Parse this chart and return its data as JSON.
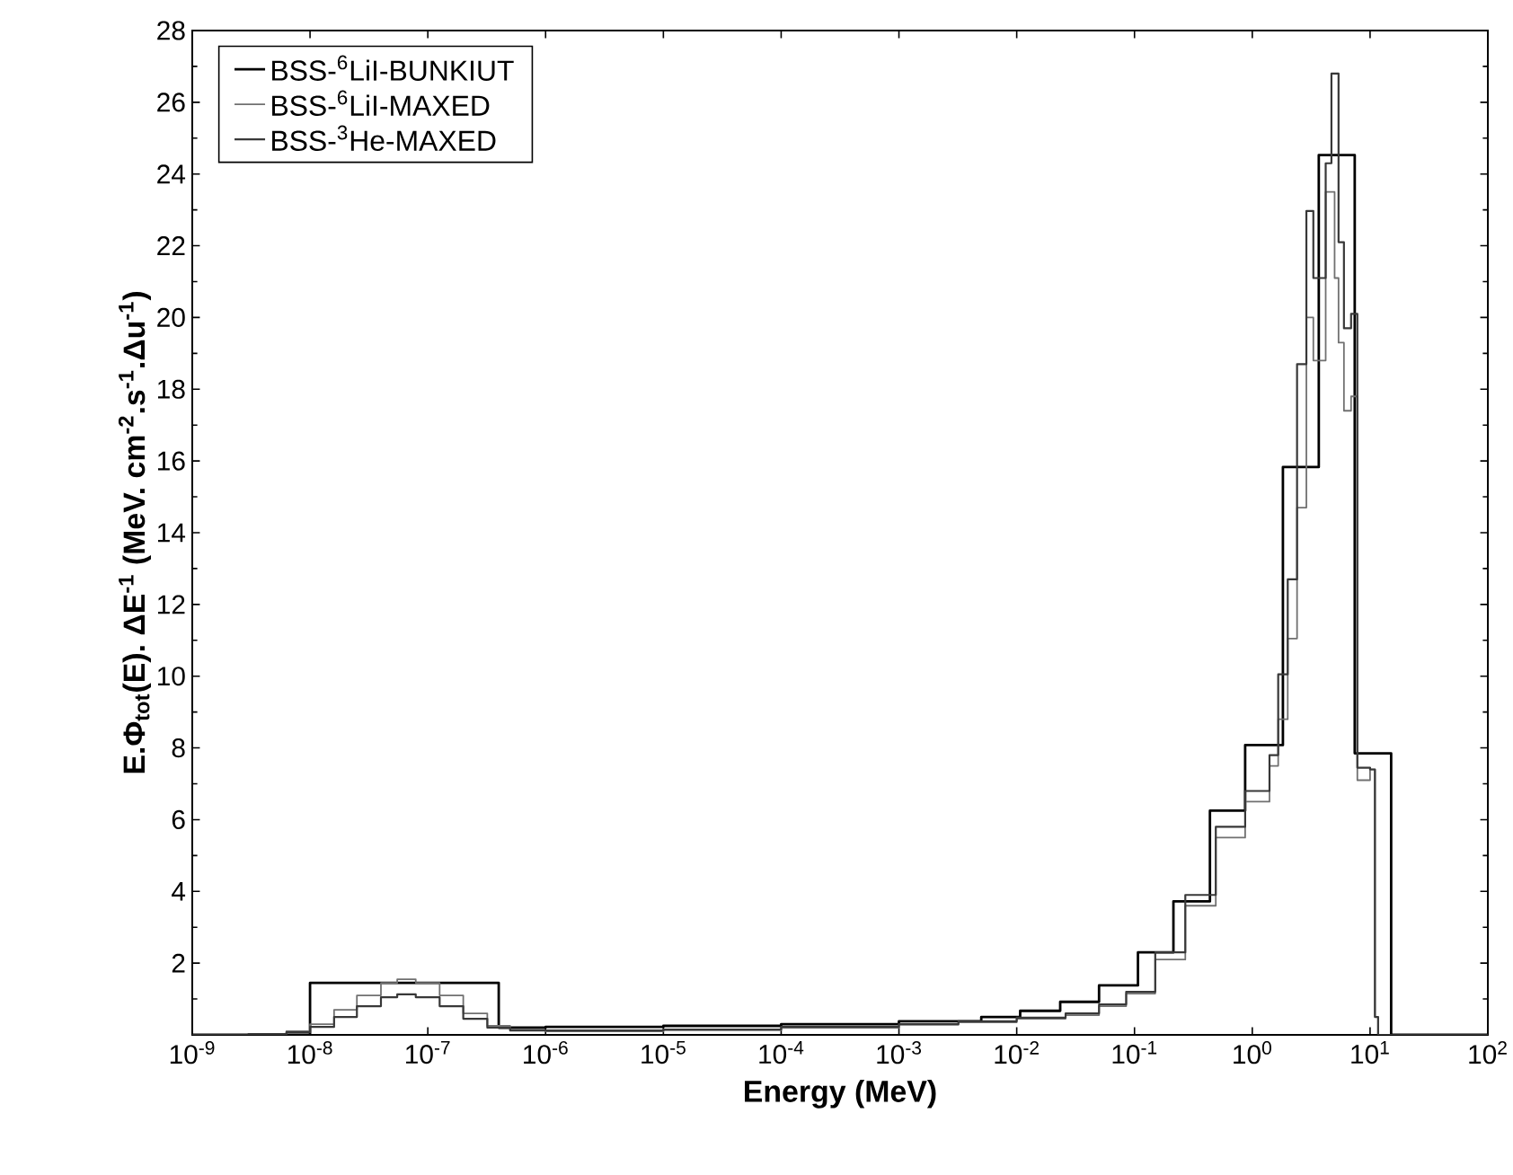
{
  "chart_data": {
    "type": "step",
    "xlabel": "Energy (MeV)",
    "ylabel": "**E.Φ$_{tot}$(E). ΔE$^{-1}$ (MeV. cm$^{-2}$.s$^{-1}$.Δu$^{-1}$)**",
    "log": "x",
    "xlim": [
      1e-09,
      100
    ],
    "ylim": [
      0,
      28
    ],
    "xticks": [
      {
        "value": 1e-09,
        "label": "10$^{-9}$"
      },
      {
        "value": 1e-08,
        "label": "10$^{-8}$"
      },
      {
        "value": 1e-07,
        "label": "10$^{-7}$"
      },
      {
        "value": 1e-06,
        "label": "10$^{-6}$"
      },
      {
        "value": 1e-05,
        "label": "10$^{-5}$"
      },
      {
        "value": 0.0001,
        "label": "10$^{-4}$"
      },
      {
        "value": 0.001,
        "label": "10$^{-3}$"
      },
      {
        "value": 0.01,
        "label": "10$^{-2}$"
      },
      {
        "value": 0.1,
        "label": "10$^{-1}$"
      },
      {
        "value": 1,
        "label": "10$^{0}$"
      },
      {
        "value": 10,
        "label": "10$^{1}$"
      },
      {
        "value": 100,
        "label": "10$^{2}$"
      }
    ],
    "yticks": [
      {
        "value": 0,
        "label": null
      },
      2,
      4,
      6,
      8,
      10,
      12,
      14,
      16,
      18,
      20,
      22,
      24,
      26,
      28
    ],
    "legend": "top left",
    "grid": false,
    "series": [
      {
        "name": "BSS-$^{6}$LiI-BUNKIUT",
        "color": "#000000",
        "x": [
          1e-09,
          1e-08,
          4e-07,
          1e-06,
          1e-05,
          0.0001,
          0.001,
          0.005,
          0.0107,
          0.0234,
          0.05,
          0.107,
          0.214,
          0.437,
          0.87,
          1.82,
          3.67,
          7.41,
          15.1,
          100
        ],
        "values": [
          0,
          1.45,
          0.2,
          0.22,
          0.25,
          0.3,
          0.38,
          0.5,
          0.67,
          0.92,
          1.38,
          2.3,
          3.72,
          6.25,
          8.08,
          15.83,
          24.53,
          7.85,
          0,
          0
        ]
      },
      {
        "name": "BSS-$^{6}$LiI-MAXED",
        "color": "#707070",
        "x": [
          1e-09,
          3e-09,
          6.3e-09,
          1e-08,
          1.6e-08,
          2.5e-08,
          4e-08,
          5.5e-08,
          7.9e-08,
          1.26e-07,
          2e-07,
          3.2e-07,
          5e-07,
          1e-06,
          1e-05,
          0.0001,
          0.001,
          0.0032,
          0.01,
          0.026,
          0.05,
          0.085,
          0.15,
          0.27,
          0.49,
          0.87,
          1.4,
          1.66,
          2.0,
          2.4,
          2.88,
          3.3,
          4.2,
          5.0,
          5.4,
          6.0,
          6.9,
          7.8,
          10.0,
          11.0,
          11.7,
          100
        ],
        "values": [
          0,
          0.02,
          0.1,
          0.3,
          0.7,
          1.1,
          1.45,
          1.55,
          1.45,
          1.1,
          0.6,
          0.25,
          0.12,
          0.1,
          0.13,
          0.2,
          0.28,
          0.35,
          0.45,
          0.55,
          0.8,
          1.15,
          2.1,
          3.6,
          5.5,
          6.5,
          7.5,
          8.8,
          11.05,
          14.7,
          20.0,
          18.8,
          23.5,
          21.1,
          19.3,
          17.4,
          17.8,
          7.1,
          7.4,
          0.5,
          0,
          0
        ]
      },
      {
        "name": "BSS-$^{3}$He-MAXED",
        "color": "#383838",
        "x": [
          1e-09,
          3e-09,
          6.3e-09,
          1e-08,
          1.6e-08,
          2.5e-08,
          4e-08,
          5.5e-08,
          7.9e-08,
          1.26e-07,
          2e-07,
          3.2e-07,
          5e-07,
          1e-06,
          1e-05,
          0.0001,
          0.001,
          0.0032,
          0.01,
          0.026,
          0.05,
          0.085,
          0.15,
          0.27,
          0.49,
          0.87,
          1.4,
          1.66,
          2.0,
          2.4,
          2.88,
          3.3,
          4.2,
          4.7,
          5.4,
          6.0,
          6.9,
          7.8,
          10.0,
          11.0,
          11.7,
          100
        ],
        "values": [
          0,
          0.02,
          0.07,
          0.22,
          0.5,
          0.8,
          1.05,
          1.13,
          1.05,
          0.8,
          0.45,
          0.2,
          0.12,
          0.12,
          0.15,
          0.22,
          0.3,
          0.38,
          0.48,
          0.6,
          0.85,
          1.2,
          2.3,
          3.9,
          5.8,
          6.8,
          7.8,
          10.05,
          12.7,
          18.7,
          22.97,
          21.1,
          24.3,
          26.8,
          22.1,
          19.7,
          20.1,
          7.45,
          7.4,
          0.5,
          0,
          0
        ]
      }
    ]
  }
}
